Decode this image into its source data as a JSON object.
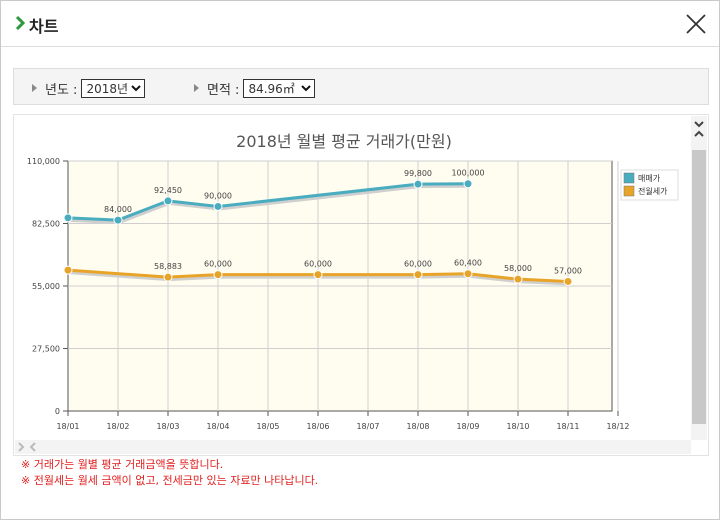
{
  "dialog": {
    "title": "차트"
  },
  "filters": {
    "year_label": "년도 :",
    "year_value": "2018년",
    "area_label": "면적 :",
    "area_value": "84.96㎡"
  },
  "notes": [
    "※ 거래가는 월별 평균 거래금액을 뜻합니다.",
    "※ 전월세는 월세 금액이 없고, 전세금만 있는 자료만 나타납니다."
  ],
  "colors": {
    "sale": "#4aacbf",
    "rent": "#e8a428",
    "plot_bg": "#fffdf0"
  },
  "chart_data": {
    "type": "line",
    "title": "2018년 월별 평균 거래가(만원)",
    "categories": [
      "18/01",
      "18/02",
      "18/03",
      "18/04",
      "18/05",
      "18/06",
      "18/07",
      "18/08",
      "18/09",
      "18/10",
      "18/11",
      "18/12"
    ],
    "ylim": [
      0,
      110000
    ],
    "yticks": [
      0,
      27500,
      55000,
      82500,
      110000
    ],
    "ytick_labels": [
      "0",
      "27,500",
      "55,000",
      "82,500",
      "110,000"
    ],
    "grid": true,
    "legend_position": "right",
    "series": [
      {
        "name": "매매가",
        "color": "#4aacbf",
        "values": [
          85000,
          84000,
          92450,
          90000,
          null,
          null,
          null,
          99800,
          100000,
          null,
          null,
          null
        ],
        "labels": [
          "",
          "84,000",
          "92,450",
          "90,000",
          "",
          "",
          "",
          "99,800",
          "100,000",
          "",
          "",
          ""
        ]
      },
      {
        "name": "전월세가",
        "color": "#e8a428",
        "values": [
          62000,
          null,
          58883,
          60000,
          null,
          60000,
          null,
          60000,
          60400,
          58000,
          57000,
          null
        ],
        "labels": [
          "",
          "",
          "58,883",
          "60,000",
          "",
          "60,000",
          "",
          "60,000",
          "60,400",
          "58,000",
          "57,000",
          ""
        ]
      }
    ]
  }
}
